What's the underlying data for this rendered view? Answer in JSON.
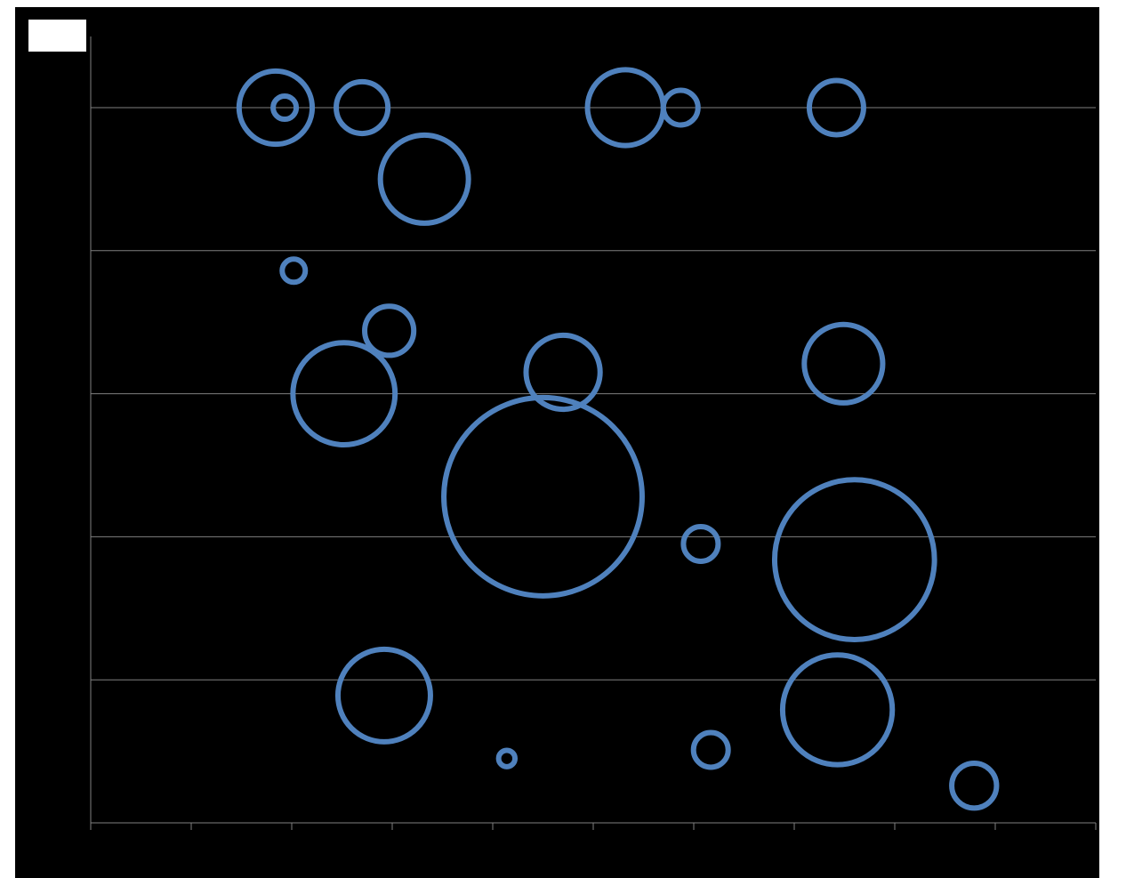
{
  "chart_data": {
    "type": "bubble",
    "title": "",
    "xlabel": "",
    "ylabel": "",
    "xlim": [
      0,
      10
    ],
    "ylim": [
      0,
      5
    ],
    "x_ticks": [
      0,
      1,
      2,
      3,
      4,
      5,
      6,
      7,
      8,
      9,
      10
    ],
    "y_gridlines": [
      1,
      2,
      3,
      4,
      5
    ],
    "grid": true,
    "legend": {
      "position": "top-left",
      "entries": []
    },
    "series": [
      {
        "color": "#4F81BD",
        "points": [
          {
            "x": 1.93,
            "y": 5.0,
            "size": 4
          },
          {
            "x": 1.84,
            "y": 5.0,
            "size": 40
          },
          {
            "x": 2.7,
            "y": 5.0,
            "size": 20
          },
          {
            "x": 3.32,
            "y": 4.5,
            "size": 58
          },
          {
            "x": 5.32,
            "y": 5.0,
            "size": 43
          },
          {
            "x": 5.87,
            "y": 5.0,
            "size": 9
          },
          {
            "x": 7.42,
            "y": 5.0,
            "size": 22
          },
          {
            "x": 2.02,
            "y": 3.86,
            "size": 4
          },
          {
            "x": 2.97,
            "y": 3.44,
            "size": 18
          },
          {
            "x": 2.52,
            "y": 3.0,
            "size": 78
          },
          {
            "x": 4.7,
            "y": 3.15,
            "size": 41
          },
          {
            "x": 7.49,
            "y": 3.21,
            "size": 46
          },
          {
            "x": 4.5,
            "y": 2.28,
            "size": 294
          },
          {
            "x": 6.07,
            "y": 1.95,
            "size": 9
          },
          {
            "x": 7.6,
            "y": 1.84,
            "size": 191
          },
          {
            "x": 2.92,
            "y": 0.89,
            "size": 64
          },
          {
            "x": 4.14,
            "y": 0.45,
            "size": 2
          },
          {
            "x": 6.17,
            "y": 0.51,
            "size": 9
          },
          {
            "x": 7.43,
            "y": 0.79,
            "size": 90
          },
          {
            "x": 8.79,
            "y": 0.26,
            "size": 15
          }
        ]
      }
    ]
  }
}
